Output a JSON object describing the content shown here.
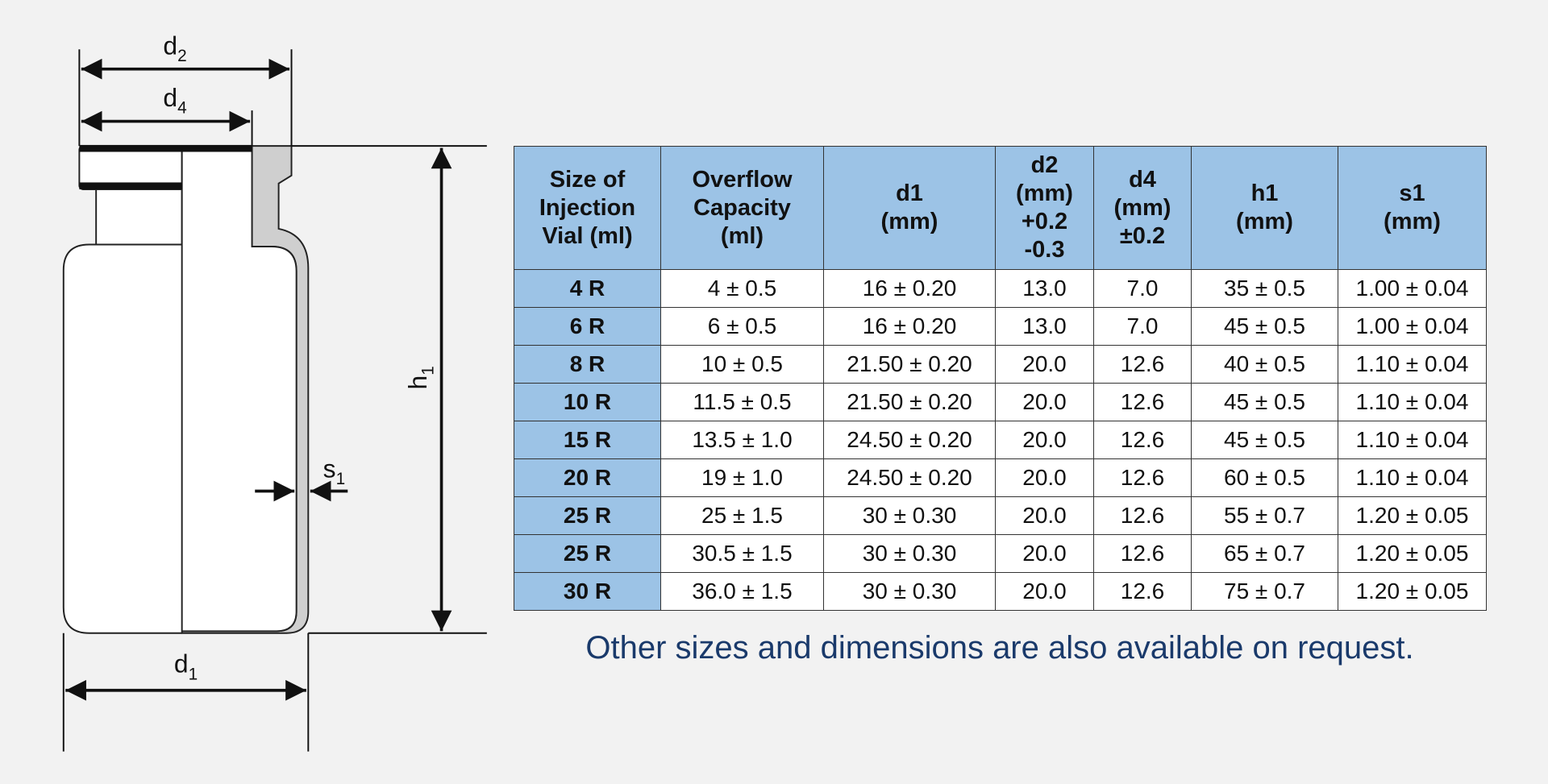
{
  "diagram": {
    "labels": [
      {
        "base": "d",
        "sub": "2"
      },
      {
        "base": "d",
        "sub": "4"
      },
      {
        "base": "h",
        "sub": "1"
      },
      {
        "base": "s",
        "sub": "1"
      },
      {
        "base": "d",
        "sub": "1"
      }
    ]
  },
  "table": {
    "header": [
      [
        "Size of",
        "Injection",
        "Vial (ml)"
      ],
      [
        "Overflow",
        "Capacity",
        "(ml)"
      ],
      [
        "d1",
        "(mm)"
      ],
      [
        "d2",
        "(mm)",
        "+0.2",
        "-0.3"
      ],
      [
        "d4",
        "(mm)",
        "±0.2"
      ],
      [
        "h1",
        "(mm)"
      ],
      [
        "s1",
        "(mm)"
      ]
    ],
    "rows": [
      [
        "4 R",
        "4 ± 0.5",
        "16 ± 0.20",
        "13.0",
        "7.0",
        "35 ± 0.5",
        "1.00 ± 0.04"
      ],
      [
        "6 R",
        "6 ± 0.5",
        "16 ± 0.20",
        "13.0",
        "7.0",
        "45 ± 0.5",
        "1.00 ± 0.04"
      ],
      [
        "8 R",
        "10 ± 0.5",
        "21.50 ± 0.20",
        "20.0",
        "12.6",
        "40 ± 0.5",
        "1.10 ± 0.04"
      ],
      [
        "10 R",
        "11.5 ± 0.5",
        "21.50 ± 0.20",
        "20.0",
        "12.6",
        "45 ± 0.5",
        "1.10 ± 0.04"
      ],
      [
        "15 R",
        "13.5 ± 1.0",
        "24.50 ± 0.20",
        "20.0",
        "12.6",
        "45 ± 0.5",
        "1.10 ± 0.04"
      ],
      [
        "20 R",
        "19 ± 1.0",
        "24.50 ± 0.20",
        "20.0",
        "12.6",
        "60 ± 0.5",
        "1.10 ± 0.04"
      ],
      [
        "25 R",
        "25 ± 1.5",
        "30 ± 0.30",
        "20.0",
        "12.6",
        "55 ± 0.7",
        "1.20 ± 0.05"
      ],
      [
        "25 R",
        "30.5 ± 1.5",
        "30 ± 0.30",
        "20.0",
        "12.6",
        "65 ± 0.7",
        "1.20 ± 0.05"
      ],
      [
        "30 R",
        "36.0 ± 1.5",
        "30 ± 0.30",
        "20.0",
        "12.6",
        "75 ± 0.7",
        "1.20 ± 0.05"
      ]
    ]
  },
  "note": "Other sizes and dimensions are also available on request."
}
